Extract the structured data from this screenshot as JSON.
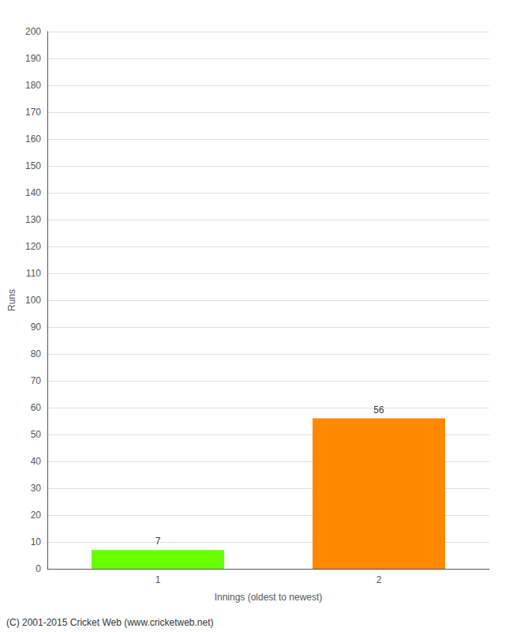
{
  "chart_data": {
    "type": "bar",
    "categories": [
      "1",
      "2"
    ],
    "values": [
      7,
      56
    ],
    "colors": [
      "#66ff00",
      "#ff8800"
    ],
    "xlabel": "Innings (oldest to newest)",
    "ylabel": "Runs",
    "ylim": [
      0,
      200
    ],
    "yticks": [
      0,
      10,
      20,
      30,
      40,
      50,
      60,
      70,
      80,
      90,
      100,
      110,
      120,
      130,
      140,
      150,
      160,
      170,
      180,
      190,
      200
    ],
    "grid": true,
    "data_labels": true,
    "annotations": [
      "(C) 2001-2015 Cricket Web (www.cricketweb.net)"
    ]
  }
}
